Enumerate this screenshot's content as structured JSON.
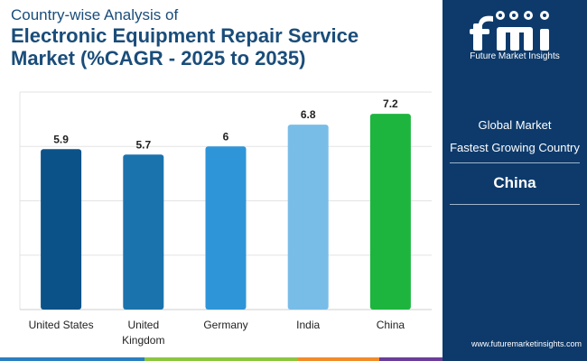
{
  "header": {
    "subtitle": "Country-wise Analysis of",
    "title_line1": "Electronic Equipment Repair Service",
    "title_line2": "Market (%CAGR - 2025 to 2035)"
  },
  "chart_data": {
    "type": "bar",
    "categories": [
      "United States",
      "United Kingdom",
      "Germany",
      "India",
      "China"
    ],
    "category_lines": [
      [
        "United States"
      ],
      [
        "United",
        "Kingdom"
      ],
      [
        "Germany"
      ],
      [
        "India"
      ],
      [
        "China"
      ]
    ],
    "values": [
      5.9,
      5.7,
      6,
      6.8,
      7.2
    ],
    "value_labels": [
      "5.9",
      "5.7",
      "6",
      "6.8",
      "7.2"
    ],
    "colors": [
      "#0b5288",
      "#1b73ad",
      "#2e95d8",
      "#78bde8",
      "#1db53e"
    ],
    "ylim": [
      0,
      8
    ],
    "grid": true,
    "title": "Country-wise Analysis of Electronic Equipment Repair Service Market (%CAGR - 2025 to 2035)"
  },
  "panel": {
    "brand": "Future Market Insights",
    "label_line1": "Global Market",
    "label_line2": "Fastest Growing Country",
    "value": "China",
    "url": "www.futuremarketinsights.com"
  },
  "colors": {
    "panel_bg": "#0d3a6b",
    "title": "#1a4d7a",
    "strip": [
      "#2a7fc1",
      "#8cc63f",
      "#f28c28",
      "#6a3d9a"
    ]
  }
}
